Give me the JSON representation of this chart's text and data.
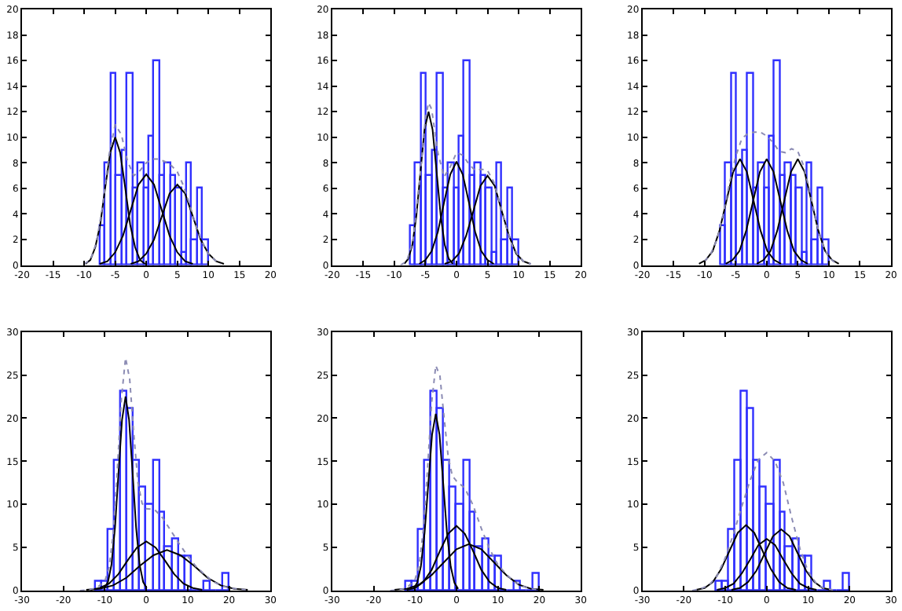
{
  "chart_data": [
    {
      "type": "histogram",
      "color": "#3030ff",
      "bins": [
        -7.4,
        -6.5,
        -5.6,
        -4.8,
        -3.9,
        -3.0,
        -2.1,
        -1.3,
        -0.4,
        0.5,
        1.3,
        2.2,
        3.1,
        4.0,
        4.8,
        5.7,
        6.6,
        7.4,
        8.3,
        9.2,
        10.1
      ],
      "values": [
        3,
        8,
        15,
        7,
        9,
        15,
        6,
        8,
        6,
        10,
        16,
        7,
        8,
        7,
        6,
        1,
        8,
        2,
        6,
        2
      ],
      "xlim": [
        -20,
        20
      ],
      "ylim": [
        0,
        20
      ],
      "xticks": [
        -20,
        -15,
        -10,
        -5,
        0,
        5,
        10,
        15,
        20
      ],
      "yticks": [
        0,
        2,
        4,
        6,
        8,
        10,
        12,
        14,
        16,
        18,
        20
      ],
      "series": [
        {
          "type": "line",
          "color": "#000000",
          "line_style": "solid",
          "x": [
            -9.8,
            -9,
            -8.2,
            -7.4,
            -6.6,
            -5.8,
            -5,
            -4.2,
            -3.4,
            -2.6,
            -1.8,
            -1,
            -0.2
          ],
          "values": [
            0.1,
            0.4,
            1.4,
            3.2,
            6.1,
            8.8,
            10,
            8.8,
            6.1,
            3.2,
            1.4,
            0.4,
            0.1
          ]
        },
        {
          "type": "line",
          "color": "#000000",
          "line_style": "solid",
          "x": [
            -7.5,
            -6.25,
            -5,
            -3.75,
            -2.5,
            -1.25,
            0,
            1.25,
            2.5,
            3.75,
            5,
            6.25,
            7.5
          ],
          "values": [
            0.1,
            0.3,
            1.0,
            2.3,
            4.3,
            6.3,
            7.1,
            6.3,
            4.3,
            2.3,
            1.0,
            0.3,
            0.1
          ]
        },
        {
          "type": "line",
          "color": "#000000",
          "line_style": "solid",
          "x": [
            -2.5,
            -1.25,
            0,
            1.25,
            2.5,
            3.75,
            5,
            6.25,
            7.5,
            8.75,
            10,
            11.25,
            12.5
          ],
          "values": [
            0.1,
            0.3,
            0.9,
            2.0,
            3.8,
            5.6,
            6.3,
            5.6,
            3.8,
            2.0,
            0.9,
            0.3,
            0.1
          ]
        },
        {
          "type": "line",
          "color": "#8c8cb4",
          "line_style": "dotted",
          "x": [
            -10,
            -9,
            -8,
            -7,
            -6,
            -5,
            -4,
            -3,
            -2,
            -1,
            0,
            1,
            2,
            3,
            4,
            5,
            6,
            7,
            8,
            9,
            10,
            11,
            12
          ],
          "values": [
            0.1,
            0.4,
            1.8,
            4.7,
            8.6,
            11.0,
            10.2,
            8.1,
            7.0,
            7.4,
            8.0,
            8.3,
            8.3,
            8.1,
            7.8,
            7.3,
            6.2,
            4.7,
            3.1,
            1.8,
            0.9,
            0.4,
            0.1
          ]
        }
      ]
    },
    {
      "type": "histogram",
      "color": "#3030ff",
      "bins": [
        -7.4,
        -6.5,
        -5.6,
        -4.8,
        -3.9,
        -3.0,
        -2.1,
        -1.3,
        -0.4,
        0.5,
        1.3,
        2.2,
        3.1,
        4.0,
        4.8,
        5.7,
        6.6,
        7.4,
        8.3,
        9.2,
        10.1
      ],
      "values": [
        3,
        8,
        15,
        7,
        9,
        15,
        6,
        8,
        6,
        10,
        16,
        7,
        8,
        7,
        6,
        1,
        8,
        2,
        6,
        2
      ],
      "xlim": [
        -20,
        20
      ],
      "ylim": [
        0,
        20
      ],
      "xticks": [
        -20,
        -15,
        -10,
        -5,
        0,
        5,
        10,
        15,
        20
      ],
      "yticks": [
        0,
        2,
        4,
        6,
        8,
        10,
        12,
        14,
        16,
        18,
        20
      ],
      "series": [
        {
          "type": "line",
          "color": "#000000",
          "line_style": "solid",
          "x": [
            -8.4,
            -7.75,
            -7.1,
            -6.45,
            -5.8,
            -5.15,
            -4.5,
            -3.85,
            -3.2,
            -2.55,
            -1.9,
            -1.25,
            -0.6
          ],
          "values": [
            0.1,
            0.5,
            1.6,
            3.9,
            7.3,
            10.6,
            12,
            10.6,
            7.3,
            3.9,
            1.6,
            0.5,
            0.1
          ]
        },
        {
          "type": "line",
          "color": "#000000",
          "line_style": "solid",
          "x": [
            -6,
            -5,
            -4,
            -3,
            -2,
            -1,
            0,
            1,
            2,
            3,
            4,
            5,
            6
          ],
          "values": [
            0.1,
            0.4,
            1.1,
            2.6,
            4.9,
            7.1,
            8.1,
            7.1,
            4.9,
            2.6,
            1.1,
            0.4,
            0.1
          ]
        },
        {
          "type": "line",
          "color": "#000000",
          "line_style": "solid",
          "x": [
            -1.9,
            -0.75,
            0.4,
            1.55,
            2.7,
            3.85,
            5,
            6.15,
            7.3,
            8.45,
            9.6,
            10.75,
            11.9
          ],
          "values": [
            0.1,
            0.3,
            0.9,
            2.3,
            4.2,
            6.2,
            7,
            6.2,
            4.2,
            2.3,
            0.9,
            0.3,
            0.1
          ]
        },
        {
          "type": "line",
          "color": "#8c8cb4",
          "line_style": "dotted",
          "x": [
            -9,
            -8,
            -7,
            -6,
            -5,
            -4.5,
            -4,
            -3,
            -2,
            -1,
            0,
            1,
            2,
            3,
            4,
            5,
            6,
            7,
            8,
            9,
            10,
            11,
            12
          ],
          "values": [
            0.0,
            0.3,
            1.9,
            6.3,
            11.5,
            12.7,
            12.2,
            8.8,
            6.9,
            7.7,
            8.8,
            8.6,
            7.9,
            7.4,
            7.5,
            7.4,
            6.5,
            4.8,
            3.0,
            1.5,
            0.7,
            0.2,
            0.1
          ]
        }
      ]
    },
    {
      "type": "histogram",
      "color": "#3030ff",
      "bins": [
        -7.4,
        -6.5,
        -5.6,
        -4.8,
        -3.9,
        -3.0,
        -2.1,
        -1.3,
        -0.4,
        0.5,
        1.3,
        2.2,
        3.1,
        4.0,
        4.8,
        5.7,
        6.6,
        7.4,
        8.3,
        9.2,
        10.1
      ],
      "values": [
        3,
        8,
        15,
        7,
        9,
        15,
        6,
        8,
        6,
        10,
        16,
        7,
        8,
        7,
        6,
        1,
        8,
        2,
        6,
        2
      ],
      "xlim": [
        -20,
        20
      ],
      "ylim": [
        0,
        20
      ],
      "xticks": [
        -20,
        -15,
        -10,
        -5,
        0,
        5,
        10,
        15,
        20
      ],
      "yticks": [
        0,
        2,
        4,
        6,
        8,
        10,
        12,
        14,
        16,
        18,
        20
      ],
      "series": [
        {
          "type": "line",
          "color": "#000000",
          "line_style": "solid",
          "x": [
            -10.9,
            -9.8,
            -8.7,
            -7.6,
            -6.5,
            -5.4,
            -4.3,
            -3.2,
            -2.1,
            -1.0,
            0.1,
            1.2,
            2.3
          ],
          "values": [
            0.1,
            0.4,
            1.1,
            2.7,
            5.0,
            7.3,
            8.3,
            7.3,
            5.0,
            2.7,
            1.1,
            0.4,
            0.1
          ]
        },
        {
          "type": "line",
          "color": "#000000",
          "line_style": "solid",
          "x": [
            -6.6,
            -5.5,
            -4.4,
            -3.3,
            -2.2,
            -1.1,
            0,
            1.1,
            2.2,
            3.3,
            4.4,
            5.5,
            6.6
          ],
          "values": [
            0.1,
            0.4,
            1.1,
            2.7,
            5.0,
            7.3,
            8.3,
            7.3,
            5.0,
            2.7,
            1.1,
            0.4,
            0.1
          ]
        },
        {
          "type": "line",
          "color": "#000000",
          "line_style": "solid",
          "x": [
            -1.6,
            -0.5,
            0.6,
            1.7,
            2.8,
            3.9,
            5,
            6.1,
            7.2,
            8.3,
            9.4,
            10.5,
            11.6
          ],
          "values": [
            0.1,
            0.4,
            1.1,
            2.7,
            5.0,
            7.3,
            8.3,
            7.3,
            5.0,
            2.7,
            1.1,
            0.4,
            0.1
          ]
        },
        {
          "type": "line",
          "color": "#8c8cb4",
          "line_style": "dotted",
          "x": [
            -10,
            -9,
            -8,
            -7,
            -6,
            -5,
            -4,
            -3,
            -2,
            -1,
            0,
            1,
            2,
            3,
            4,
            5,
            6,
            7,
            8,
            9,
            10,
            11
          ],
          "values": [
            0.3,
            0.9,
            2.0,
            4.0,
            6.4,
            8.5,
            9.9,
            10.3,
            10.4,
            10.4,
            10.1,
            9.6,
            8.9,
            8.8,
            9.1,
            8.9,
            7.7,
            5.6,
            3.3,
            1.6,
            0.6,
            0.2
          ]
        }
      ]
    },
    {
      "type": "histogram",
      "color": "#3030ff",
      "bins": [
        -12.2,
        -10.7,
        -9.1,
        -7.6,
        -6.0,
        -4.5,
        -2.9,
        -1.4,
        0.1,
        1.7,
        3.2,
        4.7,
        6.3,
        7.8,
        9.4,
        10.9,
        12.4,
        14.0,
        15.5,
        17.1,
        18.6,
        20.1
      ],
      "values": [
        1,
        1,
        7,
        15,
        23,
        21,
        15,
        12,
        10,
        15,
        9,
        5,
        6,
        4,
        4,
        0,
        0,
        1,
        0,
        0,
        2
      ],
      "xlim": [
        -30,
        30
      ],
      "ylim": [
        0,
        30
      ],
      "xticks": [
        -30,
        -20,
        -10,
        0,
        10,
        20,
        30
      ],
      "yticks": [
        0,
        5,
        10,
        15,
        20,
        25,
        30
      ],
      "series": [
        {
          "type": "line",
          "color": "#000000",
          "line_style": "solid",
          "x": [
            -10.1,
            -9.25,
            -8.4,
            -7.55,
            -6.7,
            -5.85,
            -5,
            -4.15,
            -3.3,
            -2.45,
            -1.6,
            -0.75,
            0.1
          ],
          "values": [
            0.3,
            1.0,
            3.0,
            7.3,
            13.7,
            19.8,
            22.5,
            19.8,
            13.7,
            7.3,
            3.0,
            1.0,
            0.3
          ]
        },
        {
          "type": "line",
          "color": "#000000",
          "line_style": "solid",
          "x": [
            -13.5,
            -11.25,
            -9,
            -6.75,
            -4.5,
            -2.25,
            0,
            2.25,
            4.5,
            6.75,
            9,
            11.25,
            13.5
          ],
          "values": [
            0.1,
            0.3,
            0.8,
            1.9,
            3.5,
            5.0,
            5.7,
            5.0,
            3.5,
            1.9,
            0.8,
            0.3,
            0.1
          ]
        },
        {
          "type": "line",
          "color": "#000000",
          "line_style": "solid",
          "x": [
            -14.5,
            -11.25,
            -8,
            -4.75,
            -1.5,
            1.75,
            5,
            8.25,
            11.5,
            14.75,
            18,
            21.25,
            24.5
          ],
          "values": [
            0.1,
            0.2,
            0.6,
            1.5,
            2.9,
            4.1,
            4.7,
            4.1,
            2.9,
            1.5,
            0.6,
            0.2,
            0.1
          ]
        },
        {
          "type": "line",
          "color": "#8c8cb4",
          "line_style": "dotted",
          "x": [
            -16,
            -14,
            -12,
            -10,
            -9,
            -8,
            -7,
            -6,
            -5,
            -4,
            -3,
            -2,
            -1,
            0,
            2,
            4,
            6,
            8,
            10,
            12,
            14,
            16,
            18,
            20,
            22,
            24
          ],
          "values": [
            0.0,
            0.1,
            0.3,
            1.1,
            2.6,
            6.5,
            13.9,
            22.3,
            27.0,
            24.5,
            18.1,
            12.5,
            10.1,
            9.5,
            9.4,
            8.4,
            6.9,
            5.4,
            4.0,
            2.8,
            1.9,
            1.1,
            0.6,
            0.3,
            0.2,
            0.1
          ]
        }
      ]
    },
    {
      "type": "histogram",
      "color": "#3030ff",
      "bins": [
        -12.2,
        -10.7,
        -9.1,
        -7.6,
        -6.0,
        -4.5,
        -2.9,
        -1.4,
        0.1,
        1.7,
        3.2,
        4.7,
        6.3,
        7.8,
        9.4,
        10.9,
        12.4,
        14.0,
        15.5,
        17.1,
        18.6,
        20.1
      ],
      "values": [
        1,
        1,
        7,
        15,
        23,
        21,
        15,
        12,
        10,
        15,
        9,
        5,
        6,
        4,
        4,
        0,
        0,
        1,
        0,
        0,
        2
      ],
      "xlim": [
        -30,
        30
      ],
      "ylim": [
        0,
        30
      ],
      "xticks": [
        -30,
        -20,
        -10,
        0,
        10,
        20,
        30
      ],
      "yticks": [
        0,
        5,
        10,
        15,
        20,
        25,
        30
      ],
      "series": [
        {
          "type": "line",
          "color": "#000000",
          "line_style": "solid",
          "x": [
            -10.4,
            -9.5,
            -8.6,
            -7.7,
            -6.8,
            -5.9,
            -5,
            -4.1,
            -3.2,
            -2.3,
            -1.4,
            -0.5,
            0.4
          ],
          "values": [
            0.2,
            0.9,
            2.8,
            6.7,
            12.4,
            18.1,
            20.5,
            18.1,
            12.4,
            6.7,
            2.8,
            0.9,
            0.2
          ]
        },
        {
          "type": "line",
          "color": "#000000",
          "line_style": "solid",
          "x": [
            -12,
            -10,
            -8,
            -6,
            -4,
            -2,
            0,
            2,
            4,
            6,
            8,
            10,
            12
          ],
          "values": [
            0.1,
            0.3,
            1.0,
            2.4,
            4.6,
            6.6,
            7.5,
            6.6,
            4.6,
            2.4,
            1.0,
            0.3,
            0.1
          ]
        },
        {
          "type": "line",
          "color": "#000000",
          "line_style": "solid",
          "x": [
            -15,
            -12,
            -9,
            -6,
            -3,
            0,
            3,
            6,
            9,
            12,
            15,
            18,
            21
          ],
          "values": [
            0.1,
            0.2,
            0.7,
            1.8,
            3.3,
            4.8,
            5.4,
            4.8,
            3.3,
            1.8,
            0.7,
            0.2,
            0.1
          ]
        },
        {
          "type": "line",
          "color": "#8c8cb4",
          "line_style": "dotted",
          "x": [
            -16,
            -14,
            -12,
            -10,
            -9,
            -8,
            -7,
            -6,
            -5,
            -4,
            -3,
            -2,
            -1,
            0,
            2,
            4,
            6,
            8,
            10,
            12,
            14,
            16,
            18,
            20
          ],
          "values": [
            0.0,
            0.1,
            0.3,
            1.3,
            3.0,
            7.1,
            14.0,
            21.8,
            26.1,
            24.9,
            20.1,
            15.5,
            13.3,
            12.7,
            11.9,
            9.9,
            7.2,
            4.8,
            3.0,
            1.9,
            1.0,
            0.5,
            0.2,
            0.1
          ]
        }
      ]
    },
    {
      "type": "histogram",
      "color": "#3030ff",
      "bins": [
        -12.2,
        -10.7,
        -9.1,
        -7.6,
        -6.0,
        -4.5,
        -2.9,
        -1.4,
        0.1,
        1.7,
        3.2,
        4.7,
        6.3,
        7.8,
        9.4,
        10.9,
        12.4,
        14.0,
        15.5,
        17.1,
        18.6,
        20.1
      ],
      "values": [
        1,
        1,
        7,
        15,
        23,
        21,
        15,
        12,
        10,
        15,
        9,
        5,
        6,
        4,
        4,
        0,
        0,
        1,
        0,
        0,
        2
      ],
      "xlim": [
        -30,
        30
      ],
      "ylim": [
        0,
        30
      ],
      "xticks": [
        -30,
        -20,
        -10,
        0,
        10,
        20,
        30
      ],
      "yticks": [
        0,
        5,
        10,
        15,
        20,
        25,
        30
      ],
      "series": [
        {
          "type": "line",
          "color": "#000000",
          "line_style": "solid",
          "x": [
            -17,
            -15,
            -13,
            -11,
            -9,
            -7,
            -5,
            -3,
            -1,
            1,
            3,
            5,
            7
          ],
          "values": [
            0.1,
            0.3,
            1.0,
            2.5,
            4.6,
            6.7,
            7.6,
            6.7,
            4.6,
            2.5,
            1.0,
            0.3,
            0.1
          ]
        },
        {
          "type": "line",
          "color": "#000000",
          "line_style": "solid",
          "x": [
            -12,
            -10,
            -8,
            -6,
            -4,
            -2,
            0,
            2,
            4,
            6,
            8,
            10,
            12
          ],
          "values": [
            0.1,
            0.3,
            0.8,
            2.0,
            3.6,
            5.3,
            6,
            5.3,
            3.6,
            2.0,
            0.8,
            0.3,
            0.1
          ]
        },
        {
          "type": "line",
          "color": "#000000",
          "line_style": "solid",
          "x": [
            -8.5,
            -6.5,
            -4.5,
            -2.5,
            -0.5,
            1.5,
            3.5,
            5.5,
            7.5,
            9.5,
            11.5,
            13.5,
            15.5
          ],
          "values": [
            0.1,
            0.3,
            1.0,
            2.3,
            4.3,
            6.3,
            7.1,
            6.3,
            4.3,
            2.3,
            1.0,
            0.3,
            0.1
          ]
        },
        {
          "type": "line",
          "color": "#8c8cb4",
          "line_style": "dotted",
          "x": [
            -18,
            -16,
            -14,
            -12,
            -10,
            -8,
            -6,
            -4,
            -2,
            0,
            2,
            4,
            6,
            8,
            10,
            12,
            14,
            16
          ],
          "values": [
            0.0,
            0.2,
            0.6,
            1.7,
            3.8,
            6.6,
            9.8,
            12.8,
            15.2,
            16,
            15,
            12.5,
            8.5,
            4.9,
            2.2,
            0.8,
            0.2,
            0.1
          ]
        }
      ]
    }
  ]
}
